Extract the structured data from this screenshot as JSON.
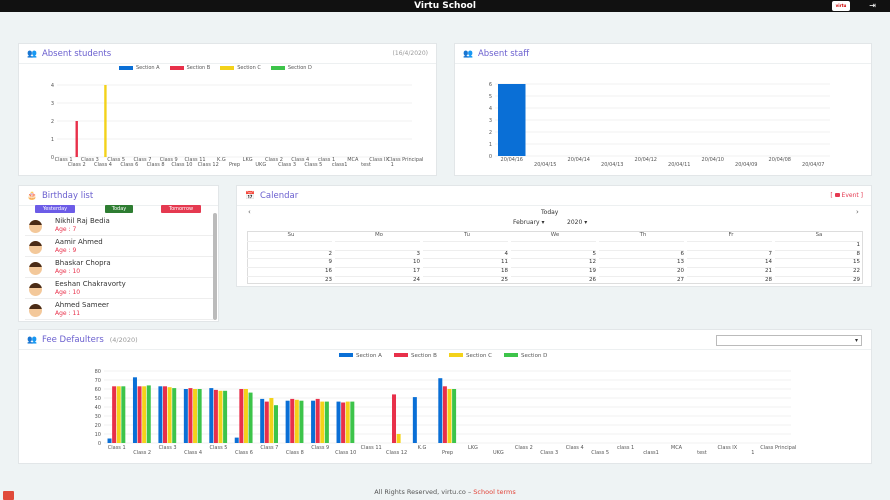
{
  "app": {
    "title": "Virtu School",
    "logo_text": "virtu",
    "logout_icon": "logout-icon"
  },
  "absent_students": {
    "title": "Absent students",
    "date": "(16/4/2020)",
    "legend": [
      {
        "name": "Section A",
        "color": "#0a6fd6"
      },
      {
        "name": "Section B",
        "color": "#e8304a"
      },
      {
        "name": "Section C",
        "color": "#f3d21a"
      },
      {
        "name": "Section D",
        "color": "#3dc44a"
      }
    ],
    "yticks": [
      "0",
      "1",
      "2",
      "3",
      "4"
    ],
    "xlabels_top": [
      "Class 1",
      "Class 3",
      "Class 5",
      "Class 7",
      "Class 9",
      "Class 11",
      "K.G",
      "LKG",
      "Class 2",
      "Class 4",
      "class 1",
      "MCA",
      "Class IX",
      "Class Principal"
    ],
    "xlabels_bottom": [
      "Class 2",
      "Class 4",
      "Class 6",
      "Class 8",
      "Class 10",
      "Class 12",
      "Prep",
      "UKG",
      "Class 3",
      "Class 5",
      "class1",
      "test",
      "1"
    ]
  },
  "absent_staff": {
    "title": "Absent staff",
    "yticks": [
      "0",
      "1",
      "2",
      "3",
      "4",
      "5",
      "6"
    ],
    "xlabels": [
      "20/04/16",
      "20/04/15",
      "20/04/14",
      "20/04/13",
      "20/04/12",
      "20/04/11",
      "20/04/10",
      "20/04/09",
      "20/04/08",
      "20/04/07"
    ]
  },
  "birthday": {
    "title": "Birthday list",
    "buttons": {
      "yesterday": "Yesterday",
      "today": "Today",
      "tomorrow": "Tomorrow"
    },
    "people": [
      {
        "name": "Nikhil Raj Bedia",
        "age": "Age : 7"
      },
      {
        "name": "Aamir Ahmed",
        "age": "Age : 9"
      },
      {
        "name": "Bhaskar Chopra",
        "age": "Age : 10"
      },
      {
        "name": "Eeshan Chakravorty",
        "age": "Age : 10"
      },
      {
        "name": "Ahmed Sameer",
        "age": "Age : 11"
      }
    ]
  },
  "calendar": {
    "title": "Calendar",
    "event_label": "Event",
    "today_label": "Today",
    "month": "February",
    "year": "2020",
    "prev": "‹",
    "next": "›",
    "weekdays": [
      "Su",
      "Mo",
      "Tu",
      "We",
      "Th",
      "Fr",
      "Sa"
    ],
    "weeks": [
      [
        "",
        "",
        "",
        "",
        "",
        "",
        "1"
      ],
      [
        "2",
        "3",
        "4",
        "5",
        "6",
        "7",
        "8"
      ],
      [
        "9",
        "10",
        "11",
        "12",
        "13",
        "14",
        "15"
      ],
      [
        "16",
        "17",
        "18",
        "19",
        "20",
        "21",
        "22"
      ],
      [
        "23",
        "24",
        "25",
        "26",
        "27",
        "28",
        "29"
      ]
    ]
  },
  "fee_defaulters": {
    "title": "Fee Defaulters",
    "period": "(4/2020)",
    "legend": [
      "Section A",
      "Section B",
      "Section C",
      "Section D"
    ],
    "yticks": [
      "0",
      "10",
      "20",
      "30",
      "40",
      "50",
      "60",
      "70",
      "80"
    ],
    "select_value": ""
  },
  "chart_data": [
    {
      "type": "bar",
      "title": "Absent students",
      "categories": [
        "Class 1",
        "Class 2",
        "Class 3",
        "Class 4",
        "Class 5",
        "Class 6",
        "Class 7",
        "Class 8",
        "Class 9",
        "Class 10",
        "Class 11",
        "Class 12",
        "K.G",
        "Prep",
        "LKG",
        "UKG",
        "Class 2",
        "Class 3",
        "Class 4",
        "Class 5",
        "class 1",
        "class1",
        "MCA",
        "test",
        "Class IX",
        "1",
        "Class Principal"
      ],
      "series": [
        {
          "name": "Section A",
          "values": [
            0,
            0,
            0,
            0,
            0,
            0,
            0,
            0,
            0,
            0,
            0,
            0,
            0,
            0,
            0,
            0,
            0,
            0,
            0,
            0,
            0,
            0,
            0,
            0,
            0,
            0,
            0
          ]
        },
        {
          "name": "Section B",
          "values": [
            0,
            2,
            0,
            0,
            0,
            0,
            0,
            0,
            0,
            0,
            0,
            0,
            0,
            0,
            0,
            0,
            0,
            0,
            0,
            0,
            0,
            0,
            0,
            0,
            0,
            0,
            0
          ]
        },
        {
          "name": "Section C",
          "values": [
            0,
            0,
            0,
            4,
            0,
            0,
            0,
            0,
            0,
            0,
            0,
            0,
            0,
            0,
            0,
            0,
            0,
            0,
            0,
            0,
            0,
            0,
            0,
            0,
            0,
            0,
            0
          ]
        },
        {
          "name": "Section D",
          "values": [
            0,
            0,
            0,
            0,
            0,
            0,
            0,
            0,
            0,
            0,
            0,
            0,
            0,
            0,
            0,
            0,
            0,
            0,
            0,
            0,
            0,
            0,
            0,
            0,
            0,
            0,
            0
          ]
        }
      ],
      "ylim": [
        0,
        4
      ]
    },
    {
      "type": "bar",
      "title": "Absent staff",
      "categories": [
        "20/04/16",
        "20/04/15",
        "20/04/14",
        "20/04/13",
        "20/04/12",
        "20/04/11",
        "20/04/10",
        "20/04/09",
        "20/04/08",
        "20/04/07"
      ],
      "values": [
        6,
        0,
        0,
        0,
        0,
        0,
        0,
        0,
        0,
        0
      ],
      "ylim": [
        0,
        6
      ]
    },
    {
      "type": "bar",
      "title": "Fee Defaulters",
      "categories": [
        "Class 1",
        "Class 2",
        "Class 3",
        "Class 4",
        "Class 5",
        "Class 6",
        "Class 7",
        "Class 8",
        "Class 9",
        "Class 10",
        "Class 11",
        "Class 12",
        "K.G",
        "Prep",
        "LKG",
        "UKG",
        "Class 2",
        "Class 3",
        "Class 4",
        "Class 5",
        "class 1",
        "class1",
        "MCA",
        "test",
        "Class IX",
        "1",
        "Class Principal"
      ],
      "series": [
        {
          "name": "Section A",
          "values": [
            5,
            73,
            63,
            60,
            61,
            6,
            49,
            47,
            47,
            46,
            0,
            0,
            51,
            72,
            0,
            0,
            0,
            0,
            0,
            0,
            0,
            0,
            0,
            0,
            0,
            0,
            0
          ]
        },
        {
          "name": "Section B",
          "values": [
            63,
            63,
            63,
            61,
            59,
            60,
            46,
            49,
            49,
            45,
            0,
            54,
            0,
            63,
            0,
            0,
            0,
            0,
            0,
            0,
            0,
            0,
            0,
            0,
            0,
            0,
            0
          ]
        },
        {
          "name": "Section C",
          "values": [
            63,
            63,
            62,
            60,
            58,
            60,
            50,
            48,
            46,
            46,
            0,
            10,
            0,
            60,
            0,
            0,
            0,
            0,
            0,
            0,
            0,
            0,
            0,
            0,
            0,
            0,
            0
          ]
        },
        {
          "name": "Section D",
          "values": [
            63,
            64,
            61,
            60,
            58,
            56,
            42,
            47,
            46,
            46,
            0,
            0,
            0,
            60,
            0,
            0,
            0,
            0,
            0,
            0,
            0,
            0,
            0,
            0,
            0,
            0,
            0
          ]
        }
      ],
      "ylim": [
        0,
        80
      ]
    }
  ],
  "footer": {
    "text": "All Rights Reserved, virtu.co – ",
    "link": "School terms"
  }
}
